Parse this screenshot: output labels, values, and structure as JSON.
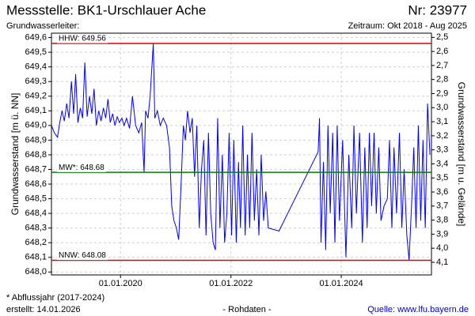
{
  "chart_data": {
    "type": "line",
    "title": "Messstelle: BK1-Urschlauer Ache",
    "number": "Nr: 23977",
    "subtitle": "Grundwasserleiter:",
    "period": "Zeitraum: Okt 2018 - Aug 2025",
    "ylabel": "Grundwasserstand [m ü. NN]",
    "y2label": "Grundwasserstand [m u. Gelände]",
    "footnote": "* Abflussjahr (2017-2024)",
    "created": "erstellt:  14.01.2026",
    "note": "- Rohdaten -",
    "source": "Quelle: www.lfu.bayern.de",
    "grid": true,
    "xlim": [
      "2018-10-01",
      "2025-08-20"
    ],
    "xticks": [
      {
        "value": "2020-01-01",
        "label": "01.01.2020"
      },
      {
        "value": "2022-01-01",
        "label": "01.01.2022"
      },
      {
        "value": "2024-01-01",
        "label": "01.01.2024"
      }
    ],
    "ylim": [
      647.98,
      649.63
    ],
    "yticks": [
      {
        "value": 648.0,
        "label": "648,0"
      },
      {
        "value": 648.1,
        "label": "648,1"
      },
      {
        "value": 648.2,
        "label": "648,2"
      },
      {
        "value": 648.3,
        "label": "648,3"
      },
      {
        "value": 648.4,
        "label": "648,4"
      },
      {
        "value": 648.5,
        "label": "648,5"
      },
      {
        "value": 648.6,
        "label": "648,6"
      },
      {
        "value": 648.7,
        "label": "648,7"
      },
      {
        "value": 648.8,
        "label": "648,8"
      },
      {
        "value": 648.9,
        "label": "648,9"
      },
      {
        "value": 649.0,
        "label": "649,0"
      },
      {
        "value": 649.1,
        "label": "649,1"
      },
      {
        "value": 649.2,
        "label": "649,2"
      },
      {
        "value": 649.3,
        "label": "649,3"
      },
      {
        "value": 649.4,
        "label": "649,4"
      },
      {
        "value": 649.5,
        "label": "649,5"
      },
      {
        "value": 649.6,
        "label": "649,6"
      }
    ],
    "y2lim": [
      4.19,
      2.47
    ],
    "y2ticks": [
      {
        "value": 2.5,
        "label": "2,5"
      },
      {
        "value": 2.6,
        "label": "2,6"
      },
      {
        "value": 2.7,
        "label": "2,7"
      },
      {
        "value": 2.8,
        "label": "2,8"
      },
      {
        "value": 2.9,
        "label": "2,9"
      },
      {
        "value": 3.0,
        "label": "3,0"
      },
      {
        "value": 3.1,
        "label": "3,1"
      },
      {
        "value": 3.2,
        "label": "3,2"
      },
      {
        "value": 3.3,
        "label": "3,3"
      },
      {
        "value": 3.4,
        "label": "3,4"
      },
      {
        "value": 3.5,
        "label": "3,5"
      },
      {
        "value": 3.6,
        "label": "3,6"
      },
      {
        "value": 3.7,
        "label": "3,7"
      },
      {
        "value": 3.8,
        "label": "3,8"
      },
      {
        "value": 3.9,
        "label": "3,9"
      },
      {
        "value": 4.0,
        "label": "4,0"
      },
      {
        "value": 4.1,
        "label": "4,1"
      }
    ],
    "reference_lines": [
      {
        "label": "HHW: 649.56",
        "value": 649.56,
        "color": "#e00000"
      },
      {
        "label": "MW*: 648.68",
        "value": 648.68,
        "color": "#008000"
      },
      {
        "label": "NNW: 648.08",
        "value": 648.08,
        "color": "#e00000"
      }
    ],
    "x": [
      "2018-10-01",
      "2018-10-20",
      "2018-11-10",
      "2018-11-25",
      "2018-12-10",
      "2018-12-25",
      "2019-01-10",
      "2019-01-25",
      "2019-02-10",
      "2019-02-25",
      "2019-03-10",
      "2019-03-25",
      "2019-04-10",
      "2019-04-25",
      "2019-05-10",
      "2019-05-25",
      "2019-06-10",
      "2019-06-25",
      "2019-07-10",
      "2019-07-25",
      "2019-08-10",
      "2019-08-25",
      "2019-09-10",
      "2019-09-25",
      "2019-10-10",
      "2019-10-25",
      "2019-11-10",
      "2019-11-25",
      "2019-12-10",
      "2019-12-25",
      "2020-01-10",
      "2020-01-25",
      "2020-02-10",
      "2020-03-01",
      "2020-03-20",
      "2020-04-10",
      "2020-05-01",
      "2020-05-20",
      "2020-06-05",
      "2020-06-15",
      "2020-07-01",
      "2020-07-15",
      "2020-08-05",
      "2020-08-15",
      "2020-09-01",
      "2020-09-20",
      "2020-10-10",
      "2020-11-01",
      "2020-11-20",
      "2020-12-05",
      "2020-12-20",
      "2021-01-05",
      "2021-01-20",
      "2021-02-05",
      "2021-02-20",
      "2021-03-05",
      "2021-03-20",
      "2021-04-05",
      "2021-04-20",
      "2021-05-05",
      "2021-05-20",
      "2021-06-05",
      "2021-06-20",
      "2021-07-05",
      "2021-07-20",
      "2021-08-05",
      "2021-08-20",
      "2021-09-05",
      "2021-09-20",
      "2021-10-05",
      "2021-10-20",
      "2021-11-05",
      "2021-11-20",
      "2021-12-05",
      "2021-12-20",
      "2022-01-05",
      "2022-01-20",
      "2022-02-05",
      "2022-02-20",
      "2022-03-05",
      "2022-03-20",
      "2022-04-05",
      "2022-04-20",
      "2022-05-05",
      "2022-05-20",
      "2022-06-05",
      "2022-06-20",
      "2022-07-05",
      "2022-07-20",
      "2022-08-05",
      "2022-08-20",
      "2022-09-05",
      "2022-11-15",
      "2023-08-01",
      "2023-08-10",
      "2023-08-20",
      "2023-09-05",
      "2023-09-20",
      "2023-10-05",
      "2023-10-20",
      "2023-11-05",
      "2023-11-20",
      "2023-12-05",
      "2023-12-20",
      "2024-01-10",
      "2024-02-01",
      "2024-02-20",
      "2024-03-10",
      "2024-03-25",
      "2024-04-10",
      "2024-05-01",
      "2024-05-20",
      "2024-06-05",
      "2024-06-20",
      "2024-07-05",
      "2024-07-20",
      "2024-08-05",
      "2024-08-20",
      "2024-09-05",
      "2024-09-20",
      "2024-10-10",
      "2024-11-01",
      "2024-11-15",
      "2024-12-01",
      "2024-12-15",
      "2025-01-01",
      "2025-01-20",
      "2025-02-05",
      "2025-02-20",
      "2025-03-10",
      "2025-03-25",
      "2025-04-10",
      "2025-04-25",
      "2025-05-10",
      "2025-05-25",
      "2025-06-10",
      "2025-06-25",
      "2025-07-10",
      "2025-07-25",
      "2025-08-10"
    ],
    "series": [
      {
        "name": "Grundwasserstand",
        "color": "#0000ff",
        "values": [
          649.0,
          648.95,
          648.92,
          649.02,
          649.1,
          649.03,
          649.15,
          649.05,
          649.3,
          649.08,
          649.35,
          649.02,
          649.12,
          649.05,
          649.43,
          649.06,
          649.2,
          649.08,
          649.25,
          649.0,
          649.1,
          649.03,
          649.12,
          649.05,
          649.18,
          649.02,
          649.08,
          649.0,
          649.06,
          649.02,
          649.05,
          649.0,
          649.05,
          648.98,
          649.2,
          649.0,
          648.95,
          649.02,
          648.68,
          649.1,
          649.05,
          649.2,
          649.56,
          649.05,
          649.1,
          649.0,
          649.05,
          649.0,
          648.85,
          648.45,
          648.35,
          648.3,
          648.22,
          648.6,
          649.0,
          648.9,
          649.1,
          648.95,
          649.05,
          648.65,
          649.0,
          648.3,
          648.7,
          648.9,
          648.25,
          648.95,
          648.4,
          648.2,
          648.15,
          649.05,
          648.3,
          648.8,
          648.2,
          648.4,
          648.95,
          648.25,
          648.9,
          648.2,
          648.75,
          648.3,
          649.0,
          648.25,
          648.8,
          648.3,
          648.95,
          648.35,
          648.7,
          648.25,
          648.8,
          648.35,
          648.55,
          648.3,
          648.28,
          648.82,
          649.05,
          648.2,
          648.75,
          648.15,
          649.0,
          648.4,
          648.95,
          648.2,
          649.0,
          648.35,
          648.9,
          648.1,
          648.8,
          648.3,
          649.0,
          648.4,
          648.95,
          648.2,
          648.85,
          648.3,
          648.95,
          648.45,
          648.95,
          648.4,
          648.85,
          648.35,
          648.45,
          648.5,
          648.9,
          648.3,
          648.85,
          648.4,
          648.95,
          648.3,
          648.7,
          648.25,
          648.08,
          648.45,
          648.85,
          648.3,
          649.0,
          648.35,
          648.9,
          648.3,
          649.15,
          648.8
        ]
      }
    ]
  }
}
